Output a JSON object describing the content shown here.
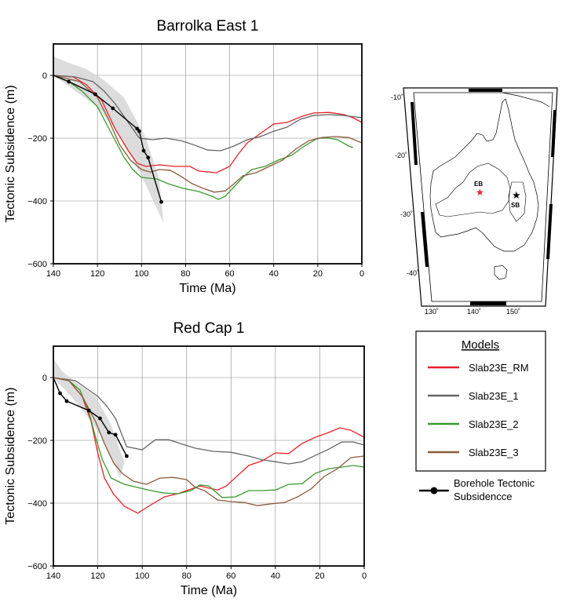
{
  "chart_data": [
    {
      "type": "line",
      "title": "Barrolka East 1",
      "xlabel": "Time (Ma)",
      "ylabel": "Tectonic Subsidence (m)",
      "xlim": [
        140,
        0
      ],
      "ylim": [
        -600,
        100
      ],
      "xticks": [
        140,
        120,
        100,
        80,
        60,
        40,
        20,
        0
      ],
      "yticks": [
        0,
        -200,
        -400,
        -600
      ],
      "grid": true,
      "uncertainty_band": {
        "upper": [
          [
            140,
            0
          ],
          [
            130,
            -10
          ],
          [
            120,
            -40
          ],
          [
            110,
            -90
          ],
          [
            100,
            -170
          ],
          [
            90,
            -330
          ]
        ],
        "lower": [
          [
            140,
            0
          ],
          [
            130,
            -50
          ],
          [
            120,
            -100
          ],
          [
            110,
            -190
          ],
          [
            100,
            -320
          ],
          [
            90,
            -470
          ]
        ],
        "start": [
          [
            140,
            60
          ],
          [
            133,
            40
          ],
          [
            125,
            20
          ],
          [
            118,
            -10
          ],
          [
            108,
            -70
          ],
          [
            98,
            -200
          ],
          [
            92,
            -330
          ]
        ]
      },
      "series": [
        {
          "name": "Slab23E_RM",
          "color": "#e8202a",
          "points": [
            [
              140,
              0
            ],
            [
              131,
              -5
            ],
            [
              125,
              -30
            ],
            [
              118,
              -80
            ],
            [
              112,
              -170
            ],
            [
              106,
              -240
            ],
            [
              102,
              -280
            ],
            [
              98,
              -290
            ],
            [
              92,
              -285
            ],
            [
              85,
              -290
            ],
            [
              78,
              -290
            ],
            [
              74,
              -305
            ],
            [
              66,
              -310
            ],
            [
              60,
              -290
            ],
            [
              56,
              -250
            ],
            [
              52,
              -215
            ],
            [
              45,
              -180
            ],
            [
              40,
              -155
            ],
            [
              34,
              -150
            ],
            [
              27,
              -130
            ],
            [
              22,
              -120
            ],
            [
              15,
              -118
            ],
            [
              8,
              -125
            ],
            [
              4,
              -135
            ],
            [
              0,
              -150
            ]
          ]
        },
        {
          "name": "Slab23E_1",
          "color": "#666666",
          "points": [
            [
              140,
              0
            ],
            [
              130,
              -5
            ],
            [
              122,
              -20
            ],
            [
              117,
              -50
            ],
            [
              112,
              -90
            ],
            [
              106,
              -150
            ],
            [
              101,
              -200
            ],
            [
              95,
              -205
            ],
            [
              89,
              -200
            ],
            [
              82,
              -208
            ],
            [
              76,
              -222
            ],
            [
              70,
              -238
            ],
            [
              64,
              -240
            ],
            [
              58,
              -225
            ],
            [
              52,
              -205
            ],
            [
              46,
              -195
            ],
            [
              40,
              -178
            ],
            [
              34,
              -165
            ],
            [
              28,
              -140
            ],
            [
              22,
              -128
            ],
            [
              15,
              -125
            ],
            [
              8,
              -128
            ],
            [
              0,
              -135
            ]
          ]
        },
        {
          "name": "Slab23E_2",
          "color": "#3a9a2e",
          "points": [
            [
              140,
              0
            ],
            [
              133,
              -20
            ],
            [
              127,
              -50
            ],
            [
              120,
              -100
            ],
            [
              114,
              -180
            ],
            [
              108,
              -260
            ],
            [
              104,
              -300
            ],
            [
              100,
              -325
            ],
            [
              93,
              -330
            ],
            [
              88,
              -345
            ],
            [
              81,
              -360
            ],
            [
              74,
              -370
            ],
            [
              68,
              -385
            ],
            [
              65,
              -395
            ],
            [
              62,
              -385
            ],
            [
              58,
              -355
            ],
            [
              54,
              -325
            ],
            [
              50,
              -300
            ],
            [
              44,
              -290
            ],
            [
              38,
              -270
            ],
            [
              32,
              -255
            ],
            [
              26,
              -225
            ],
            [
              20,
              -200
            ],
            [
              15,
              -200
            ],
            [
              11,
              -205
            ],
            [
              6,
              -225
            ],
            [
              4,
              -230
            ]
          ]
        },
        {
          "name": "Slab23E_3",
          "color": "#8b5a3c",
          "points": [
            [
              140,
              0
            ],
            [
              128,
              -20
            ],
            [
              120,
              -70
            ],
            [
              115,
              -140
            ],
            [
              110,
              -220
            ],
            [
              105,
              -270
            ],
            [
              100,
              -300
            ],
            [
              96,
              -308
            ],
            [
              92,
              -300
            ],
            [
              87,
              -302
            ],
            [
              82,
              -322
            ],
            [
              77,
              -345
            ],
            [
              72,
              -360
            ],
            [
              67,
              -372
            ],
            [
              62,
              -368
            ],
            [
              58,
              -345
            ],
            [
              54,
              -320
            ],
            [
              48,
              -310
            ],
            [
              42,
              -290
            ],
            [
              36,
              -270
            ],
            [
              30,
              -235
            ],
            [
              24,
              -208
            ],
            [
              18,
              -198
            ],
            [
              12,
              -195
            ],
            [
              6,
              -198
            ],
            [
              0,
              -215
            ]
          ]
        }
      ],
      "borehole": {
        "name": "Borehole Tectonic Subsidencce",
        "color": "#000000",
        "points": [
          [
            140,
            0
          ],
          [
            133,
            -20
          ],
          [
            121,
            -60
          ],
          [
            113,
            -105
          ],
          [
            102,
            -170
          ],
          [
            101,
            -178
          ],
          [
            99,
            -240
          ],
          [
            97,
            -262
          ],
          [
            91,
            -403
          ]
        ]
      }
    },
    {
      "type": "line",
      "title": "Red Cap 1",
      "xlabel": "Time (Ma)",
      "ylabel": "Tectonic Subsidence (m)",
      "xlim": [
        140,
        0
      ],
      "ylim": [
        -600,
        100
      ],
      "xticks": [
        140,
        120,
        100,
        80,
        60,
        40,
        20,
        0
      ],
      "yticks": [
        0,
        -200,
        -400,
        -600
      ],
      "grid": true,
      "uncertainty_band": {
        "upper": [
          [
            140,
            0
          ],
          [
            130,
            -5
          ],
          [
            120,
            -25
          ],
          [
            112,
            -70
          ],
          [
            106,
            -130
          ]
        ],
        "lower": [
          [
            140,
            0
          ],
          [
            132,
            -60
          ],
          [
            124,
            -130
          ],
          [
            118,
            -190
          ],
          [
            110,
            -320
          ]
        ],
        "start": [
          [
            140,
            60
          ],
          [
            136,
            20
          ],
          [
            129,
            -20
          ],
          [
            121,
            -60
          ],
          [
            114,
            -150
          ],
          [
            108,
            -270
          ]
        ]
      },
      "series": [
        {
          "name": "Slab23E_RM",
          "color": "#e8202a",
          "points": [
            [
              140,
              0
            ],
            [
              133,
              -10
            ],
            [
              127,
              -60
            ],
            [
              123,
              -140
            ],
            [
              120,
              -240
            ],
            [
              117,
              -320
            ],
            [
              113,
              -370
            ],
            [
              108,
              -410
            ],
            [
              102,
              -432
            ],
            [
              96,
              -405
            ],
            [
              90,
              -380
            ],
            [
              84,
              -370
            ],
            [
              78,
              -355
            ],
            [
              74,
              -345
            ],
            [
              70,
              -352
            ],
            [
              66,
              -358
            ],
            [
              62,
              -345
            ],
            [
              57,
              -312
            ],
            [
              52,
              -280
            ],
            [
              46,
              -265
            ],
            [
              40,
              -240
            ],
            [
              34,
              -242
            ],
            [
              28,
              -210
            ],
            [
              22,
              -190
            ],
            [
              16,
              -175
            ],
            [
              11,
              -160
            ],
            [
              6,
              -168
            ],
            [
              0,
              -190
            ]
          ]
        },
        {
          "name": "Slab23E_1",
          "color": "#666666",
          "points": [
            [
              140,
              0
            ],
            [
              130,
              -10
            ],
            [
              124,
              -40
            ],
            [
              120,
              -60
            ],
            [
              116,
              -90
            ],
            [
              112,
              -130
            ],
            [
              107,
              -220
            ],
            [
              100,
              -230
            ],
            [
              94,
              -198
            ],
            [
              88,
              -198
            ],
            [
              82,
              -212
            ],
            [
              76,
              -225
            ],
            [
              68,
              -235
            ],
            [
              60,
              -238
            ],
            [
              52,
              -250
            ],
            [
              46,
              -262
            ],
            [
              40,
              -268
            ],
            [
              34,
              -275
            ],
            [
              28,
              -268
            ],
            [
              22,
              -248
            ],
            [
              16,
              -228
            ],
            [
              10,
              -205
            ],
            [
              5,
              -205
            ],
            [
              0,
              -215
            ]
          ]
        },
        {
          "name": "Slab23E_2",
          "color": "#3a9a2e",
          "points": [
            [
              140,
              0
            ],
            [
              133,
              -10
            ],
            [
              128,
              -40
            ],
            [
              124,
              -110
            ],
            [
              121,
              -190
            ],
            [
              118,
              -260
            ],
            [
              114,
              -320
            ],
            [
              108,
              -340
            ],
            [
              102,
              -350
            ],
            [
              96,
              -360
            ],
            [
              90,
              -368
            ],
            [
              84,
              -370
            ],
            [
              78,
              -360
            ],
            [
              74,
              -342
            ],
            [
              70,
              -345
            ],
            [
              64,
              -382
            ],
            [
              58,
              -380
            ],
            [
              52,
              -360
            ],
            [
              46,
              -360
            ],
            [
              40,
              -358
            ],
            [
              34,
              -340
            ],
            [
              28,
              -338
            ],
            [
              22,
              -305
            ],
            [
              16,
              -290
            ],
            [
              10,
              -285
            ],
            [
              5,
              -280
            ],
            [
              0,
              -285
            ]
          ]
        },
        {
          "name": "Slab23E_3",
          "color": "#8b5a3c",
          "points": [
            [
              140,
              0
            ],
            [
              133,
              -10
            ],
            [
              127,
              -60
            ],
            [
              121,
              -140
            ],
            [
              117,
              -210
            ],
            [
              113,
              -270
            ],
            [
              109,
              -305
            ],
            [
              104,
              -330
            ],
            [
              98,
              -340
            ],
            [
              92,
              -320
            ],
            [
              86,
              -318
            ],
            [
              80,
              -325
            ],
            [
              76,
              -350
            ],
            [
              72,
              -360
            ],
            [
              66,
              -390
            ],
            [
              60,
              -395
            ],
            [
              54,
              -398
            ],
            [
              48,
              -408
            ],
            [
              42,
              -402
            ],
            [
              36,
              -398
            ],
            [
              30,
              -380
            ],
            [
              24,
              -355
            ],
            [
              18,
              -315
            ],
            [
              12,
              -290
            ],
            [
              6,
              -255
            ],
            [
              0,
              -250
            ]
          ]
        }
      ],
      "borehole": {
        "name": "Borehole Tectonic Subsidencce",
        "color": "#000000",
        "points": [
          [
            140,
            0
          ],
          [
            137,
            -50
          ],
          [
            134,
            -75
          ],
          [
            124,
            -105
          ],
          [
            119,
            -130
          ],
          [
            115,
            -175
          ],
          [
            112,
            -182
          ],
          [
            107,
            -250
          ]
        ]
      }
    }
  ],
  "map": {
    "lat_labels": [
      "-10˚",
      "-20˚",
      "-30˚",
      "-40˚"
    ],
    "lon_labels": [
      "130˚",
      "140˚",
      "150˚"
    ],
    "sites": [
      {
        "label": "EB",
        "color": "#e8202a"
      },
      {
        "label": "SB",
        "color": "#000000"
      }
    ]
  },
  "legend": {
    "title": "Models",
    "items": [
      {
        "name": "Slab23E_RM",
        "color": "#e8202a"
      },
      {
        "name": "Slab23E_1",
        "color": "#666666"
      },
      {
        "name": "Slab23E_2",
        "color": "#3a9a2e"
      },
      {
        "name": "Slab23E_3",
        "color": "#8b5a3c"
      }
    ],
    "borehole_line1": "Borehole Tectonic",
    "borehole_line2": "Subsidencce"
  }
}
